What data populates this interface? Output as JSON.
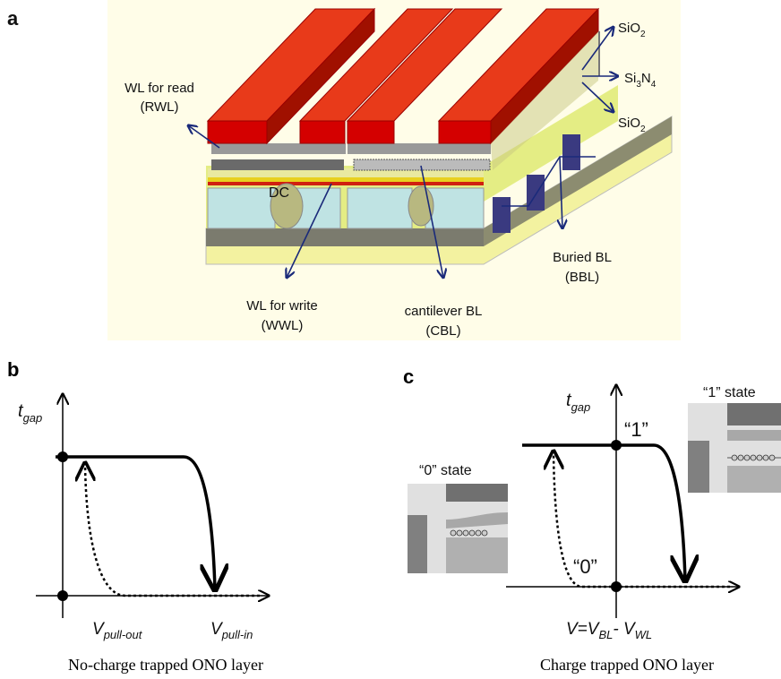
{
  "panel_a": {
    "label": "a",
    "sio2_top": {
      "text": "SiO",
      "sub": "2"
    },
    "si3n4": [
      "Si",
      "3",
      "N",
      "4"
    ],
    "sio2_bottom": {
      "text": "SiO",
      "sub": "2"
    },
    "rwl": [
      "WL for read",
      "(RWL)"
    ],
    "dc": "DC",
    "wwl": [
      "WL for write",
      "(WWL)"
    ],
    "cbl": [
      "cantilever BL",
      "(CBL)"
    ],
    "bbl": [
      "Buried BL",
      "(BBL)"
    ]
  },
  "panel_b": {
    "label": "b",
    "y_axis": {
      "text": "t",
      "sub": "gap"
    },
    "x_labels": [
      {
        "text": "V",
        "sub": "pull-out"
      },
      {
        "text": "V",
        "sub": "pull-in"
      }
    ],
    "caption": "No-charge trapped ONO layer"
  },
  "panel_c": {
    "label": "c",
    "state0": "“0” state",
    "state1": "“1” state",
    "y_axis": {
      "text": "t",
      "sub": "gap"
    },
    "point1": "“1”",
    "point0": "“0”",
    "x_label": [
      "V=V",
      "BL",
      "- V",
      "WL"
    ],
    "caption": "Charge trapped ONO layer"
  }
}
